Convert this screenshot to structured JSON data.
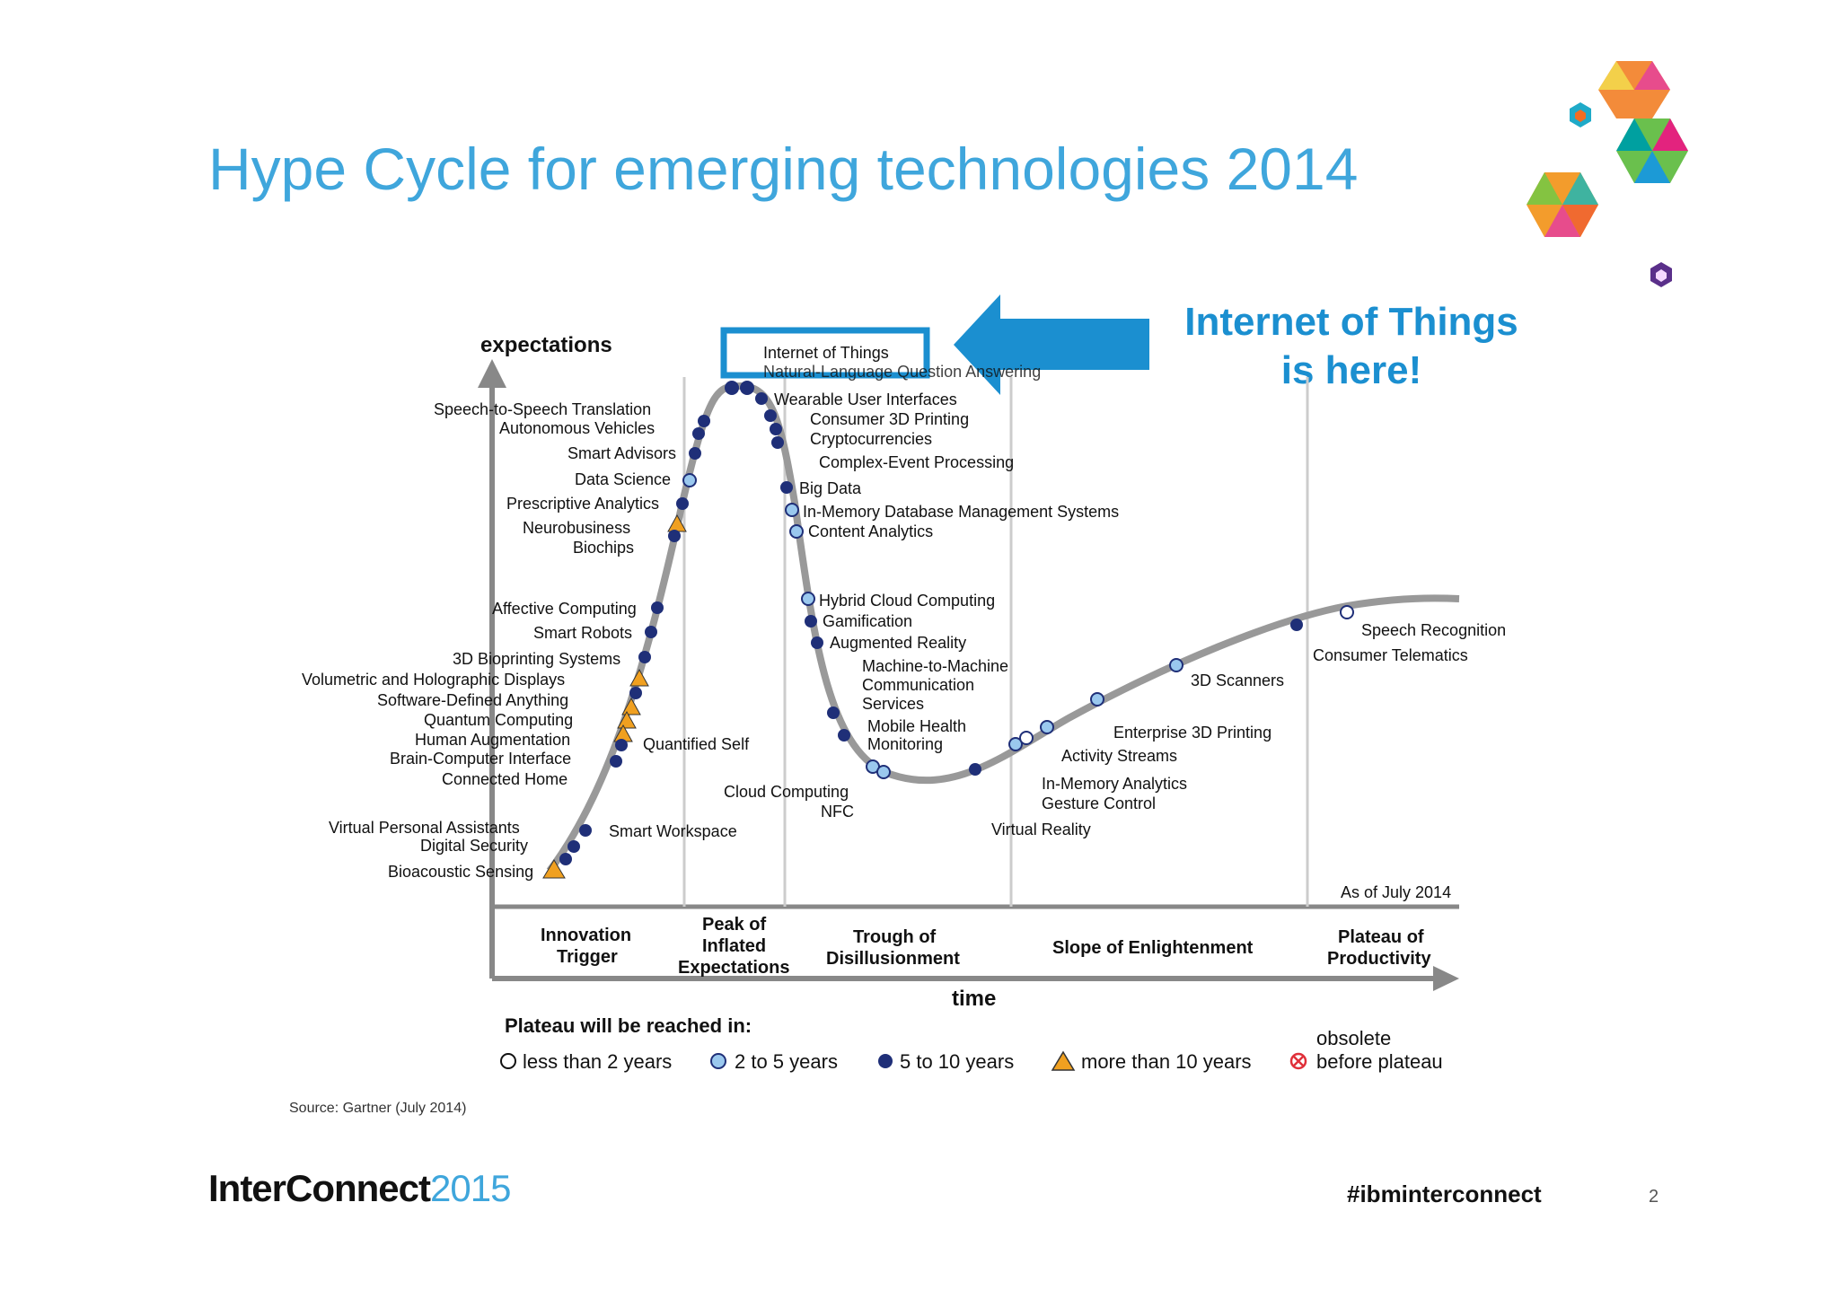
{
  "slide": {
    "title": "Hype Cycle for emerging technologies 2014",
    "callout_line1": "Internet of Things",
    "callout_line2": "is here!",
    "source": "Source: Gartner (July 2014)",
    "brand_name": "InterConnect",
    "brand_year": "2015",
    "hashtag": "#ibminterconnect",
    "page_number": "2"
  },
  "colors": {
    "title": "#3fa6dc",
    "arrow": "#1b8fd0",
    "dark_dot": "#1f2f78",
    "light_dot": "#9ac8ee",
    "triangle": "#f0a020"
  },
  "chart": {
    "y_label": "expectations",
    "x_label": "time",
    "as_of": "As of July 2014",
    "phases": [
      "Innovation Trigger",
      "Peak of Inflated Expectations",
      "Trough of Disillusionment",
      "Slope of Enlightenment",
      "Plateau of Productivity"
    ],
    "legend_title": "Plateau will be reached in:",
    "legend": [
      {
        "label": "less than 2 years",
        "marker": "open-circle"
      },
      {
        "label": "2 to 5 years",
        "marker": "light-circle"
      },
      {
        "label": "5 to 10 years",
        "marker": "dark-circle"
      },
      {
        "label": "more than 10 years",
        "marker": "triangle"
      },
      {
        "label": "obsolete before plateau",
        "marker": "x-circle"
      }
    ],
    "technologies": [
      "Internet of Things",
      "Natural-Language Question Answering",
      "Wearable User Interfaces",
      "Consumer 3D Printing",
      "Cryptocurrencies",
      "Complex-Event Processing",
      "Big Data",
      "In-Memory Database Management Systems",
      "Content Analytics",
      "Speech-to-Speech Translation",
      "Autonomous Vehicles",
      "Smart Advisors",
      "Data Science",
      "Prescriptive Analytics",
      "Neurobusiness",
      "Biochips",
      "Affective Computing",
      "Smart Robots",
      "3D Bioprinting Systems",
      "Volumetric and Holographic Displays",
      "Software-Defined Anything",
      "Quantum Computing",
      "Human Augmentation",
      "Brain-Computer Interface",
      "Connected Home",
      "Quantified Self",
      "Virtual Personal Assistants",
      "Digital Security",
      "Bioacoustic Sensing",
      "Smart Workspace",
      "Hybrid Cloud Computing",
      "Gamification",
      "Augmented Reality",
      "Machine-to-Machine Communication Services",
      "Mobile Health Monitoring",
      "Cloud Computing",
      "NFC",
      "Virtual Reality",
      "Gesture Control",
      "In-Memory Analytics",
      "Activity Streams",
      "Enterprise 3D Printing",
      "3D Scanners",
      "Consumer Telematics",
      "Speech Recognition"
    ]
  }
}
